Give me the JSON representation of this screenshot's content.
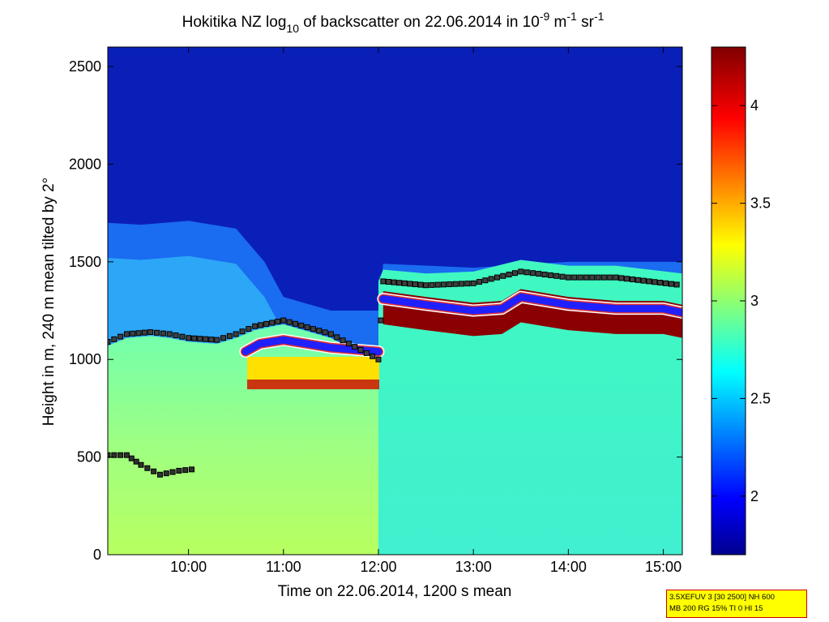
{
  "chart_data": {
    "type": "heatmap",
    "title": {
      "pre": "Hokitika NZ log",
      "sub": "10",
      "mid": " of backscatter on 22.06.2014 in 10",
      "sup1": "-9",
      "mid2": " m",
      "sup2": "-1",
      "mid3": " sr",
      "sup3": "-1"
    },
    "xlabel": "Time on 22.06.2014, 1200 s mean",
    "ylabel": "Height in m, 240 m mean tilted by 2°",
    "x_ticks": [
      "10:00",
      "11:00",
      "12:00",
      "13:00",
      "14:00",
      "15:00"
    ],
    "y_ticks": [
      "0",
      "500",
      "1000",
      "1500",
      "2000",
      "2500"
    ],
    "xlim_hours": [
      9.15,
      15.2
    ],
    "ylim": [
      0,
      2600
    ],
    "colorbar": {
      "range": [
        1.7,
        4.3
      ],
      "ticks": [
        "2",
        "2.5",
        "3",
        "3.5",
        "4"
      ],
      "colormap": "jet"
    },
    "aerosol_layer_top": [
      [
        9.15,
        1700
      ],
      [
        9.5,
        1690
      ],
      [
        10.0,
        1710
      ],
      [
        10.5,
        1670
      ],
      [
        10.8,
        1500
      ],
      [
        11.0,
        1320
      ],
      [
        11.5,
        1250
      ],
      [
        12.0,
        1250
      ],
      [
        12.05,
        1490
      ],
      [
        13.0,
        1470
      ],
      [
        14.0,
        1500
      ],
      [
        15.2,
        1500
      ]
    ],
    "cloud_base_blue": [
      [
        10.6,
        1040
      ],
      [
        10.75,
        1080
      ],
      [
        11.0,
        1100
      ],
      [
        11.25,
        1080
      ],
      [
        11.5,
        1060
      ],
      [
        11.75,
        1050
      ],
      [
        12.0,
        1040
      ],
      [
        12.05,
        1310
      ],
      [
        12.5,
        1280
      ],
      [
        13.0,
        1250
      ],
      [
        13.3,
        1260
      ],
      [
        13.5,
        1320
      ],
      [
        14.0,
        1280
      ],
      [
        14.5,
        1260
      ],
      [
        15.0,
        1260
      ],
      [
        15.2,
        1240
      ]
    ],
    "layer_top_squares": [
      [
        9.15,
        1090
      ],
      [
        9.35,
        1130
      ],
      [
        9.6,
        1140
      ],
      [
        9.8,
        1130
      ],
      [
        10.0,
        1110
      ],
      [
        10.3,
        1100
      ],
      [
        10.5,
        1130
      ],
      [
        10.7,
        1170
      ],
      [
        11.0,
        1200
      ],
      [
        11.5,
        1130
      ],
      [
        12.0,
        1000
      ],
      [
        12.05,
        1400
      ],
      [
        12.5,
        1380
      ],
      [
        13.0,
        1390
      ],
      [
        13.5,
        1450
      ],
      [
        14.0,
        1420
      ],
      [
        14.5,
        1420
      ],
      [
        15.2,
        1380
      ]
    ],
    "low_layer_squares": [
      [
        9.15,
        510
      ],
      [
        9.35,
        510
      ],
      [
        9.5,
        460
      ],
      [
        9.7,
        410
      ],
      [
        9.9,
        430
      ],
      [
        10.1,
        440
      ]
    ],
    "info_box_lines": [
      "3.5XEFUV 3 [30 2500] NH 600",
      "MB 200 RG 15% TI 0 HI 15"
    ]
  }
}
